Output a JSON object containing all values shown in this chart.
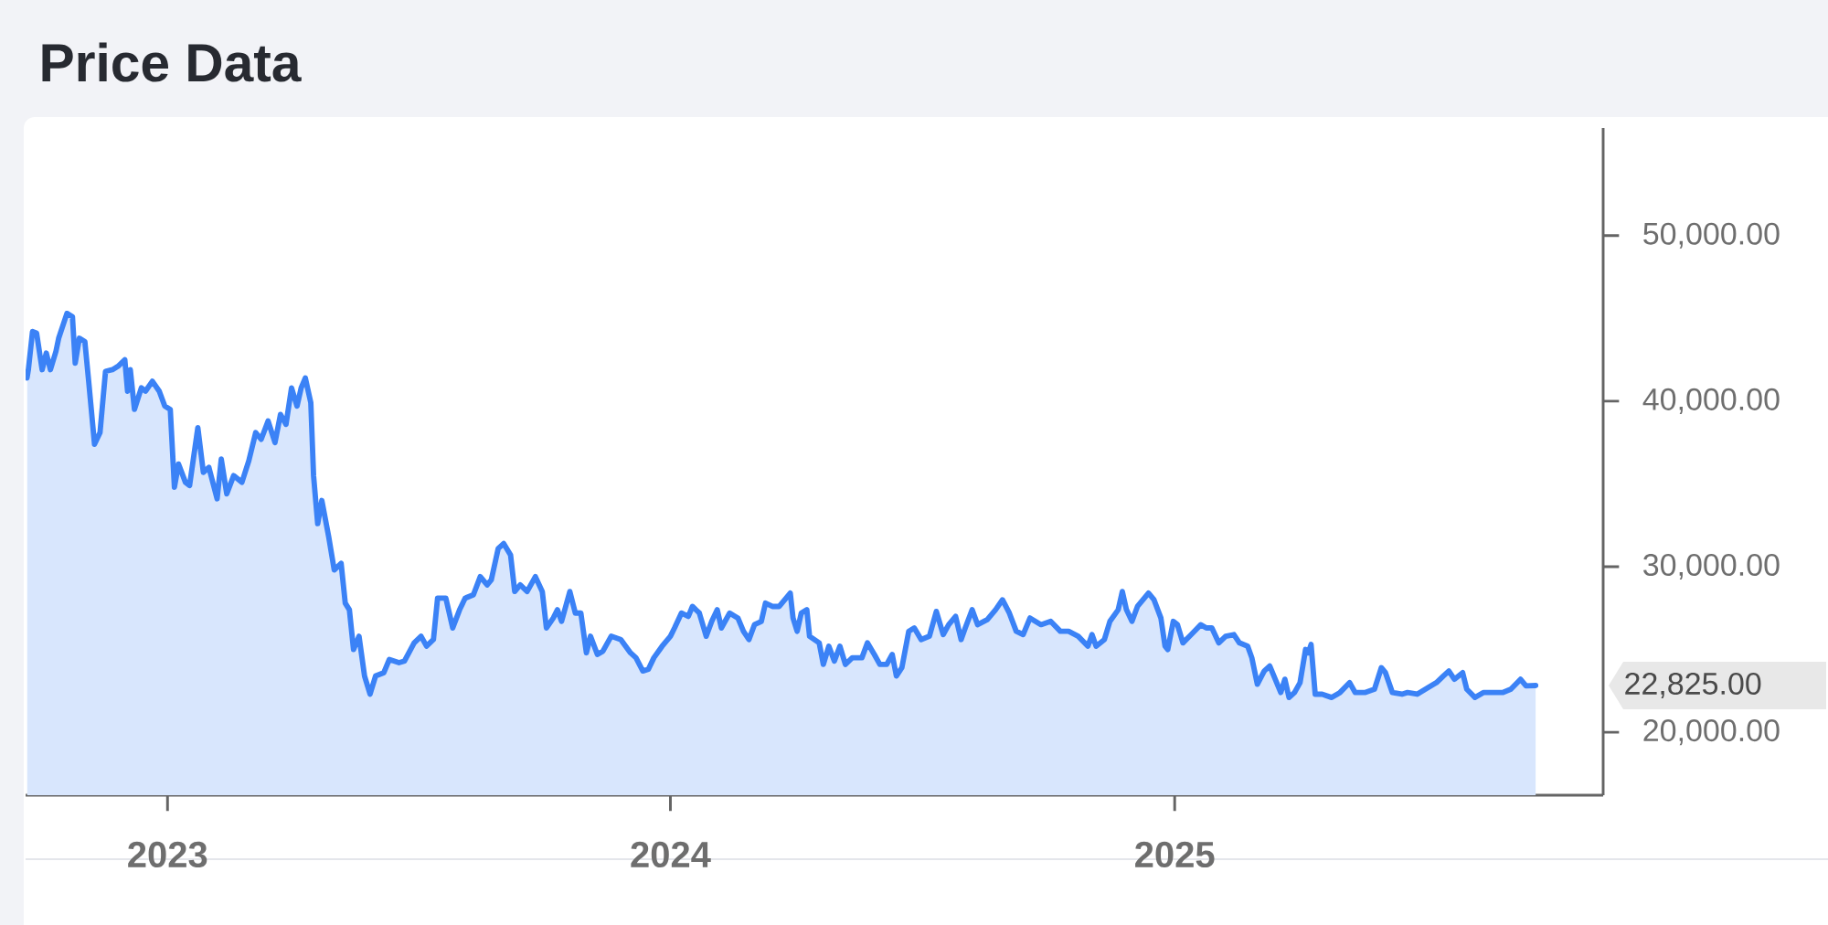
{
  "chart_data": {
    "type": "area",
    "title": "Price Data",
    "color": "#3b82f6",
    "x": [
      "2022-09-21",
      "2022-09-22",
      "2022-09-25",
      "2022-09-28",
      "2022-10-02",
      "2022-10-05",
      "2022-10-08",
      "2022-10-12",
      "2022-10-14",
      "2022-10-20",
      "2022-10-24",
      "2022-10-26",
      "2022-10-29",
      "2022-11-02",
      "2022-11-05",
      "2022-11-09",
      "2022-11-13",
      "2022-11-17",
      "2022-11-22",
      "2022-11-26",
      "2022-12-01",
      "2022-12-03",
      "2022-12-05",
      "2022-12-08",
      "2022-12-13",
      "2022-12-16",
      "2022-12-21",
      "2022-12-26",
      "2022-12-30",
      "2023-01-03",
      "2023-01-06",
      "2023-01-09",
      "2023-01-14",
      "2023-01-17",
      "2023-01-23",
      "2023-01-27",
      "2023-01-31",
      "2023-02-06",
      "2023-02-09",
      "2023-02-13",
      "2023-02-18",
      "2023-02-24",
      "2023-03-01",
      "2023-03-06",
      "2023-03-10",
      "2023-03-15",
      "2023-03-20",
      "2023-03-24",
      "2023-03-28",
      "2023-04-01",
      "2023-04-05",
      "2023-04-08",
      "2023-04-11",
      "2023-04-15",
      "2023-04-17",
      "2023-04-20",
      "2023-04-23",
      "2023-04-28",
      "2023-05-02",
      "2023-05-07",
      "2023-05-10",
      "2023-05-13",
      "2023-05-16",
      "2023-05-20",
      "2023-05-24",
      "2023-05-28",
      "2023-06-01",
      "2023-06-07",
      "2023-06-11",
      "2023-06-18",
      "2023-06-22",
      "2023-06-29",
      "2023-07-04",
      "2023-07-08",
      "2023-07-13",
      "2023-07-16",
      "2023-07-22",
      "2023-07-27",
      "2023-08-01",
      "2023-08-05",
      "2023-08-11",
      "2023-08-16",
      "2023-08-21",
      "2023-08-24",
      "2023-08-29",
      "2023-09-02",
      "2023-09-07",
      "2023-09-10",
      "2023-09-14",
      "2023-09-19",
      "2023-09-25",
      "2023-09-30",
      "2023-10-03",
      "2023-10-08",
      "2023-10-11",
      "2023-10-14",
      "2023-10-20",
      "2023-10-24",
      "2023-10-28",
      "2023-11-01",
      "2023-11-04",
      "2023-11-09",
      "2023-11-13",
      "2023-11-19",
      "2023-11-26",
      "2023-12-03",
      "2023-12-07",
      "2023-12-12",
      "2023-12-16",
      "2023-12-20",
      "2023-12-26",
      "2024-01-01",
      "2024-01-04",
      "2024-01-09",
      "2024-01-14",
      "2024-01-17",
      "2024-01-22",
      "2024-01-27",
      "2024-01-31",
      "2024-02-04",
      "2024-02-07",
      "2024-02-13",
      "2024-02-19",
      "2024-02-23",
      "2024-02-27",
      "2024-03-02",
      "2024-03-07",
      "2024-03-10",
      "2024-03-15",
      "2024-03-20",
      "2024-03-24",
      "2024-03-28",
      "2024-03-30",
      "2024-04-02",
      "2024-04-05",
      "2024-04-09",
      "2024-04-11",
      "2024-04-18",
      "2024-04-21",
      "2024-04-25",
      "2024-04-29",
      "2024-05-03",
      "2024-05-07",
      "2024-05-12",
      "2024-05-19",
      "2024-05-23",
      "2024-05-28",
      "2024-06-01",
      "2024-06-06",
      "2024-06-10",
      "2024-06-13",
      "2024-06-17",
      "2024-06-22",
      "2024-06-26",
      "2024-07-01",
      "2024-07-07",
      "2024-07-12",
      "2024-07-17",
      "2024-07-21",
      "2024-07-26",
      "2024-07-30",
      "2024-08-02",
      "2024-08-07",
      "2024-08-11",
      "2024-08-18",
      "2024-08-24",
      "2024-08-29",
      "2024-09-03",
      "2024-09-08",
      "2024-09-13",
      "2024-09-18",
      "2024-09-26",
      "2024-10-03",
      "2024-10-10",
      "2024-10-16",
      "2024-10-23",
      "2024-10-30",
      "2024-11-02",
      "2024-11-05",
      "2024-11-11",
      "2024-11-15",
      "2024-11-21",
      "2024-11-24",
      "2024-11-27",
      "2024-12-01",
      "2024-12-05",
      "2024-12-13",
      "2024-12-17",
      "2024-12-22",
      "2024-12-25",
      "2024-12-27",
      "2024-12-31",
      "2025-01-03",
      "2025-01-07",
      "2025-01-13",
      "2025-01-20",
      "2025-01-24",
      "2025-01-28",
      "2025-02-02",
      "2025-02-07",
      "2025-02-13",
      "2025-02-17",
      "2025-02-23",
      "2025-02-26",
      "2025-03-02",
      "2025-03-07",
      "2025-03-11",
      "2025-03-15",
      "2025-03-19",
      "2025-03-22",
      "2025-03-25",
      "2025-03-29",
      "2025-04-02",
      "2025-04-06",
      "2025-04-08",
      "2025-04-10",
      "2025-04-13",
      "2025-04-18",
      "2025-04-25",
      "2025-05-01",
      "2025-05-08",
      "2025-05-12",
      "2025-05-19",
      "2025-05-26",
      "2025-05-31",
      "2025-06-03",
      "2025-06-08",
      "2025-06-15",
      "2025-06-19",
      "2025-06-26",
      "2025-07-02",
      "2025-07-10",
      "2025-07-15",
      "2025-07-19",
      "2025-07-23",
      "2025-07-29",
      "2025-08-01",
      "2025-08-07",
      "2025-08-13",
      "2025-08-20",
      "2025-08-27",
      "2025-09-02",
      "2025-09-09",
      "2025-09-13",
      "2025-09-20"
    ],
    "values": [
      41400,
      41900,
      44200,
      44100,
      41900,
      42900,
      41900,
      43000,
      43800,
      45300,
      45100,
      42300,
      43800,
      43600,
      41000,
      37400,
      38100,
      41800,
      41900,
      42100,
      42500,
      40600,
      41900,
      39500,
      40800,
      40600,
      41200,
      40600,
      39700,
      39500,
      34800,
      36200,
      35100,
      34900,
      38400,
      35700,
      36000,
      34100,
      36500,
      34400,
      35500,
      35100,
      36400,
      38100,
      37700,
      38800,
      37500,
      39200,
      38600,
      40800,
      39700,
      40800,
      41400,
      39900,
      35500,
      32600,
      34000,
      31800,
      29800,
      30200,
      27800,
      27400,
      25000,
      25800,
      23400,
      22300,
      23400,
      23600,
      24400,
      24200,
      24300,
      25400,
      25800,
      25200,
      25600,
      28100,
      28100,
      26300,
      27400,
      28100,
      28300,
      29400,
      28900,
      29200,
      31100,
      31400,
      30700,
      28500,
      28900,
      28500,
      29400,
      28500,
      26300,
      26900,
      27400,
      26700,
      28500,
      27200,
      27200,
      24800,
      25800,
      24700,
      24900,
      25800,
      25600,
      24800,
      24500,
      23700,
      23800,
      24500,
      25200,
      25800,
      26300,
      27200,
      27000,
      27600,
      27200,
      25800,
      26700,
      27400,
      26300,
      27200,
      26900,
      26100,
      25600,
      26500,
      26700,
      27800,
      27600,
      27600,
      28000,
      28400,
      26900,
      26100,
      27200,
      27400,
      25800,
      25400,
      24100,
      25200,
      24300,
      25200,
      24100,
      24500,
      24500,
      25400,
      24700,
      24100,
      24100,
      24700,
      23400,
      23900,
      26100,
      26300,
      25600,
      25800,
      27300,
      25900,
      26500,
      27000,
      25600,
      26300,
      27400,
      26500,
      26800,
      27400,
      28000,
      27200,
      26100,
      25900,
      26900,
      26500,
      26700,
      26100,
      26100,
      25800,
      25200,
      25900,
      25200,
      25600,
      26700,
      27400,
      28500,
      27400,
      26700,
      27600,
      28400,
      28000,
      26900,
      25200,
      25000,
      26700,
      26500,
      25400,
      25900,
      26500,
      26300,
      26300,
      25400,
      25800,
      25900,
      25400,
      25200,
      24500,
      22900,
      23700,
      24000,
      23200,
      22400,
      23200,
      22100,
      22400,
      23000,
      25000,
      24800,
      25300,
      22300,
      22300,
      22100,
      22400,
      23000,
      22400,
      22400,
      22600,
      23900,
      23600,
      22400,
      22300,
      22400,
      22300,
      22600,
      23000,
      23400,
      23700,
      23200,
      23600,
      22600,
      22100,
      22400,
      22400,
      22400,
      22600,
      23200,
      22800,
      22825
    ],
    "xlim": [
      "2022-09-20",
      "2025-11-08"
    ],
    "xticks": [
      {
        "value": "2023-01-01",
        "label": "2023"
      },
      {
        "value": "2024-01-01",
        "label": "2024"
      },
      {
        "value": "2025-01-01",
        "label": "2025"
      }
    ],
    "ylim": [
      16200,
      56500
    ],
    "yticks": [
      {
        "value": 20000,
        "label": "20,000.00"
      },
      {
        "value": 30000,
        "label": "30,000.00"
      },
      {
        "value": 40000,
        "label": "40,000.00"
      },
      {
        "value": 50000,
        "label": "50,000.00"
      }
    ],
    "annotations": [
      "22,825.00"
    ]
  }
}
